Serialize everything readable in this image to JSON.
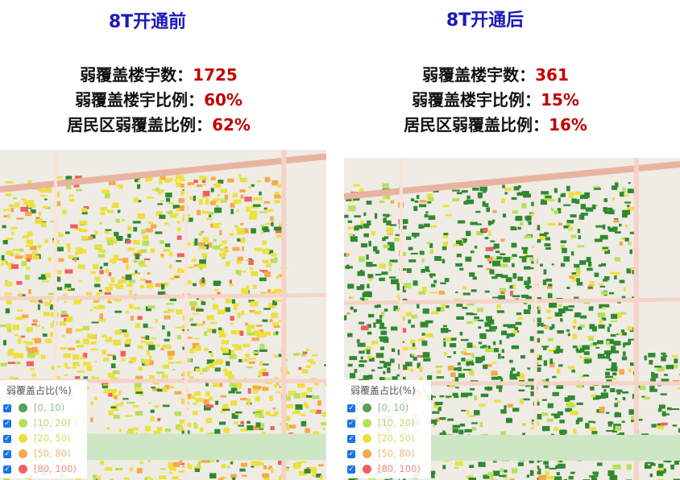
{
  "panels": [
    {
      "title": "8T开通前",
      "stats": [
        {
          "label": "弱覆盖楼宇数：",
          "value": "1725"
        },
        {
          "label": "弱覆盖楼宇比例：",
          "value": "60%"
        },
        {
          "label": "居民区弱覆盖比例：",
          "value": "62%"
        }
      ]
    },
    {
      "title": "8T开通后",
      "stats": [
        {
          "label": "弱覆盖楼宇数：",
          "value": "361"
        },
        {
          "label": "弱覆盖楼宇比例：",
          "value": "15%"
        },
        {
          "label": "居民区弱覆盖比例：",
          "value": "16%"
        }
      ]
    }
  ],
  "legend": {
    "title": "弱覆盖占比(%)",
    "items": [
      {
        "label": "[0, 10)",
        "color": "#5a9e5a",
        "text_color": "#8bbf8b",
        "checked": true
      },
      {
        "label": "[10, 20)",
        "color": "#b8e05a",
        "text_color": "#b8d870",
        "checked": true
      },
      {
        "label": "[20, 50)",
        "color": "#ece03c",
        "text_color": "#e0d860",
        "checked": true
      },
      {
        "label": "[50, 80)",
        "color": "#f7a84a",
        "text_color": "#f2b878",
        "checked": true
      },
      {
        "label": "[80, 100)",
        "color": "#f06060",
        "text_color": "#f08a8a",
        "checked": true
      }
    ]
  }
}
